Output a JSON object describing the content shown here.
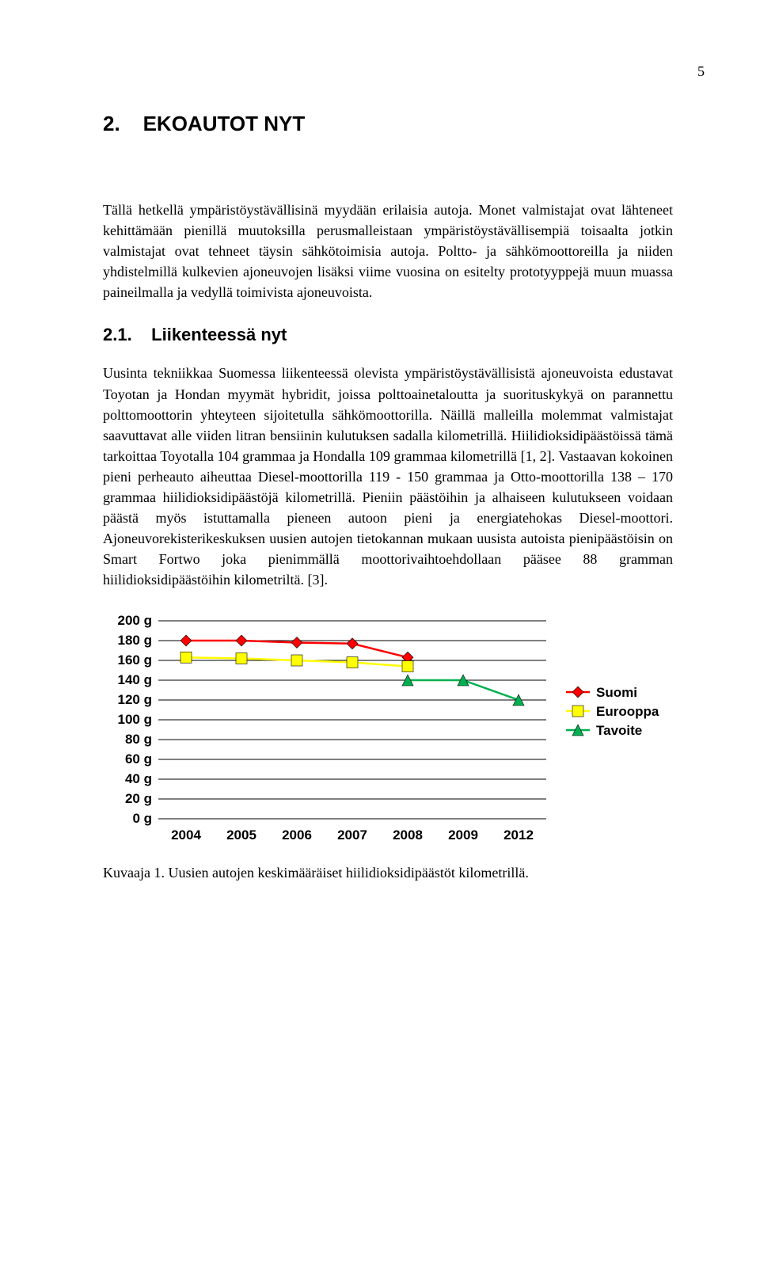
{
  "page_number": "5",
  "heading": {
    "num": "2.",
    "title": "EKOAUTOT NYT"
  },
  "intro_paragraph": "Tällä hetkellä ympäristöystävällisinä myydään erilaisia autoja. Monet valmistajat ovat lähteneet kehittämään pienillä muutoksilla perusmalleistaan ympäristöystävällisempiä toisaalta jotkin valmistajat ovat tehneet täysin sähkötoimisia autoja. Poltto- ja sähkömoottoreilla ja niiden yhdistelmillä kulkevien ajoneuvojen lisäksi viime vuosina on esitelty prototyyppejä muun muassa paineilmalla ja vedyllä toimivista ajoneuvoista.",
  "subheading": {
    "num": "2.1.",
    "title": "Liikenteessä nyt"
  },
  "body_paragraph": "Uusinta tekniikkaa Suomessa liikenteessä olevista ympäristöystävällisistä ajoneuvoista edustavat Toyotan ja Hondan myymät hybridit, joissa polttoainetaloutta ja suorituskykyä on parannettu polttomoottorin yhteyteen sijoitetulla sähkömoottorilla. Näillä malleilla molemmat valmistajat saavuttavat alle viiden litran bensiinin kulutuksen sadalla kilometrillä. Hiilidioksidipäästöissä tämä tarkoittaa Toyotalla 104 grammaa ja Hondalla 109 grammaa kilometrillä [1, 2]. Vastaavan kokoinen pieni perheauto aiheuttaa Diesel-moottorilla 119 - 150 grammaa ja Otto-moottorilla 138 – 170 grammaa hiilidioksidipäästöjä kilometrillä. Pieniin päästöihin ja alhaiseen kulutukseen voidaan päästä myös istuttamalla pieneen autoon pieni ja energiatehokas Diesel-moottori. Ajoneuvorekisterikeskuksen uusien autojen tietokannan mukaan uusista autoista pienipäästöisin on Smart Fortwo joka pienimmällä moottorivaihtoehdollaan pääsee 88 gramman hiilidioksidipäästöihin kilometriltä. [3].",
  "chart": {
    "type": "line",
    "ylim": [
      0,
      200
    ],
    "ytick_step": 20,
    "y_unit": "g",
    "x_categories": [
      "2004",
      "2005",
      "2006",
      "2007",
      "2008",
      "2009",
      "2012"
    ],
    "grid_color": "#000000",
    "background_color": "#ffffff",
    "series": [
      {
        "name": "Suomi",
        "color": "#ff0000",
        "marker": "diamond",
        "values": [
          180,
          180,
          178,
          177,
          163,
          null,
          null
        ]
      },
      {
        "name": "Eurooppa",
        "color": "#ffff00",
        "marker": "square",
        "values": [
          163,
          162,
          160,
          158,
          154,
          null,
          null
        ]
      },
      {
        "name": "Tavoite",
        "color": "#00b050",
        "marker": "triangle",
        "values": [
          null,
          null,
          null,
          null,
          140,
          140,
          120
        ]
      }
    ],
    "line_width": 2.5,
    "marker_size": 7
  },
  "caption": "Kuvaaja 1. Uusien autojen keskimääräiset hiilidioksidipäästöt kilometrillä."
}
